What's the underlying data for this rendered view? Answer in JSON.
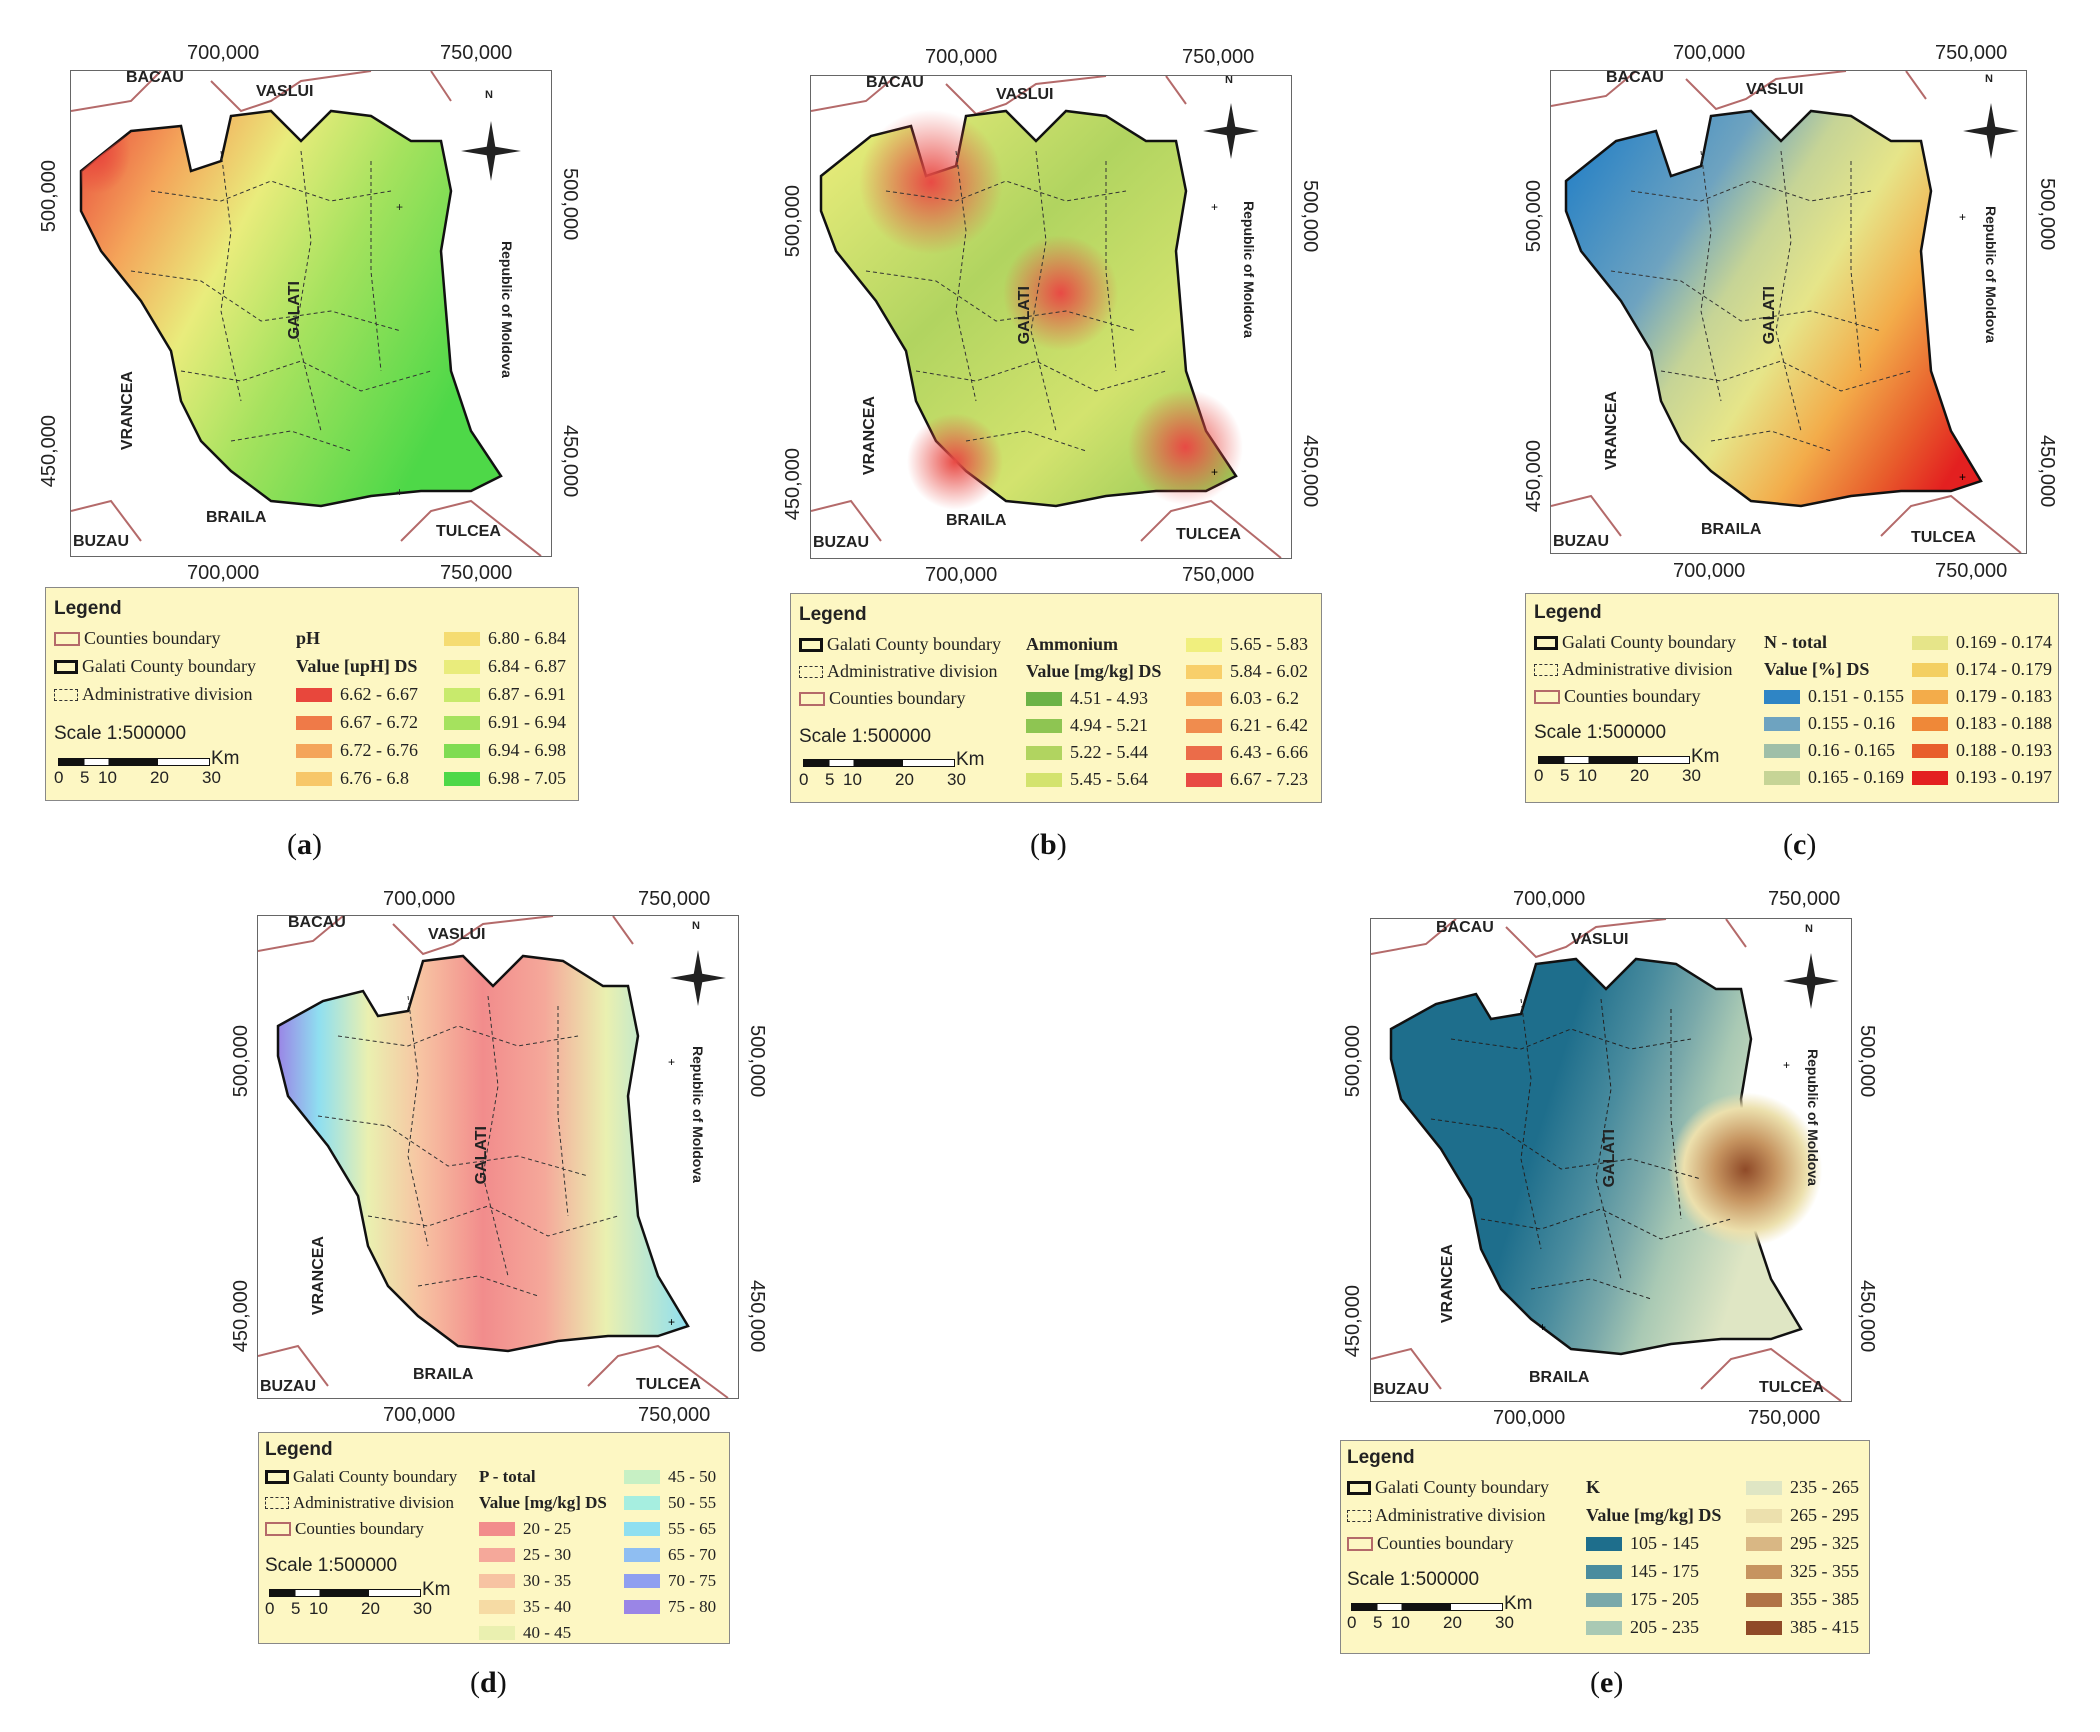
{
  "common": {
    "ticks_x": [
      "700,000",
      "750,000"
    ],
    "ticks_y": [
      "500,000",
      "450,000"
    ],
    "labels": {
      "bacau": "BACAU",
      "vaslui": "VASLUI",
      "vrancea": "VRANCEA",
      "braila": "BRAILA",
      "buzau": "BUZAU",
      "tulcea": "TULCEA",
      "galati": "GALATI",
      "moldova": "Republic of Moldova",
      "north": "N"
    },
    "legend_title": "Legend",
    "counties_boundary": "Counties boundary",
    "galati_boundary": "Galati County boundary",
    "admin_division": "Administrative division",
    "scale_text": "Scale 1:500000",
    "scale_unit": "Km",
    "scale_ticks": [
      "0",
      "5",
      "10",
      "20",
      "30"
    ]
  },
  "panels": [
    {
      "caption": "a",
      "variable": "pH",
      "value_label": "Value [upH] DS",
      "classes": [
        {
          "range": "6.62 - 6.67",
          "color": "#e8473c"
        },
        {
          "range": "6.67 - 6.72",
          "color": "#ef7a48"
        },
        {
          "range": "6.72 - 6.76",
          "color": "#f4a55a"
        },
        {
          "range": "6.76 - 6.8",
          "color": "#f7c769"
        },
        {
          "range": "6.80 - 6.84",
          "color": "#f5dc72"
        },
        {
          "range": "6.84 - 6.87",
          "color": "#e9ec7c"
        },
        {
          "range": "6.87 - 6.91",
          "color": "#c8ea6c"
        },
        {
          "range": "6.91 - 6.94",
          "color": "#a5e25e"
        },
        {
          "range": "6.94 - 6.98",
          "color": "#7fdc52"
        },
        {
          "range": "6.98 - 7.05",
          "color": "#4ed848"
        }
      ]
    },
    {
      "caption": "b",
      "variable": "Ammonium",
      "value_label": "Value [mg/kg] DS",
      "classes": [
        {
          "range": "4.51 - 4.93",
          "color": "#6cb347"
        },
        {
          "range": "4.94 - 5.21",
          "color": "#8ec552"
        },
        {
          "range": "5.22 - 5.44",
          "color": "#b1d460"
        },
        {
          "range": "5.45 - 5.64",
          "color": "#d3e36e"
        },
        {
          "range": "5.65 - 5.83",
          "color": "#f0ef7e"
        },
        {
          "range": "5.84 - 6.02",
          "color": "#f8cf6a"
        },
        {
          "range": "6.03 - 6.2",
          "color": "#f6ad5c"
        },
        {
          "range": "6.21 - 6.42",
          "color": "#f08c4e"
        },
        {
          "range": "6.43 - 6.66",
          "color": "#eb6c49"
        },
        {
          "range": "6.67 - 7.23",
          "color": "#e84a44"
        }
      ]
    },
    {
      "caption": "c",
      "variable": "N - total",
      "value_label": "Value [%] DS",
      "classes": [
        {
          "range": "0.151 - 0.155",
          "color": "#2f85c5"
        },
        {
          "range": "0.155 - 0.16",
          "color": "#6ea3c0"
        },
        {
          "range": "0.16 - 0.165",
          "color": "#9fbfa8"
        },
        {
          "range": "0.165 - 0.169",
          "color": "#c6d496"
        },
        {
          "range": "0.169 - 0.174",
          "color": "#e6e589"
        },
        {
          "range": "0.174 - 0.179",
          "color": "#f3cf62"
        },
        {
          "range": "0.179 - 0.183",
          "color": "#f3ac4a"
        },
        {
          "range": "0.183 - 0.188",
          "color": "#ef8838"
        },
        {
          "range": "0.188 - 0.193",
          "color": "#e85e2c"
        },
        {
          "range": "0.193 - 0.197",
          "color": "#e32020"
        }
      ]
    },
    {
      "caption": "d",
      "variable": "P - total",
      "value_label": "Value [mg/kg] DS",
      "classes": [
        {
          "range": "20 - 25",
          "color": "#f28c8c"
        },
        {
          "range": "25 - 30",
          "color": "#f5a89a"
        },
        {
          "range": "30 - 35",
          "color": "#f7c3a2"
        },
        {
          "range": "35 - 40",
          "color": "#f6dba4"
        },
        {
          "range": "40 - 45",
          "color": "#eaf0b0"
        },
        {
          "range": "45 - 50",
          "color": "#c7f0c4"
        },
        {
          "range": "50 - 55",
          "color": "#a6eee0"
        },
        {
          "range": "55 - 65",
          "color": "#8fdff0"
        },
        {
          "range": "65 - 70",
          "color": "#8fbef2"
        },
        {
          "range": "70 - 75",
          "color": "#8f9ff0"
        },
        {
          "range": "75 - 80",
          "color": "#9a85e6"
        }
      ]
    },
    {
      "caption": "e",
      "variable": "K",
      "value_label": "Value [mg/kg] DS",
      "classes": [
        {
          "range": "105 - 145",
          "color": "#1e6e8c"
        },
        {
          "range": "145 - 175",
          "color": "#4a8c9e"
        },
        {
          "range": "175 - 205",
          "color": "#7aa9aa"
        },
        {
          "range": "205 - 235",
          "color": "#a9c9b4"
        },
        {
          "range": "235 - 265",
          "color": "#dfe6c4"
        },
        {
          "range": "265 - 295",
          "color": "#ece0ad"
        },
        {
          "range": "295 - 325",
          "color": "#d9b784"
        },
        {
          "range": "325 - 355",
          "color": "#c69460"
        },
        {
          "range": "355 - 385",
          "color": "#b07346"
        },
        {
          "range": "385 - 415",
          "color": "#8f4a28"
        }
      ]
    }
  ]
}
